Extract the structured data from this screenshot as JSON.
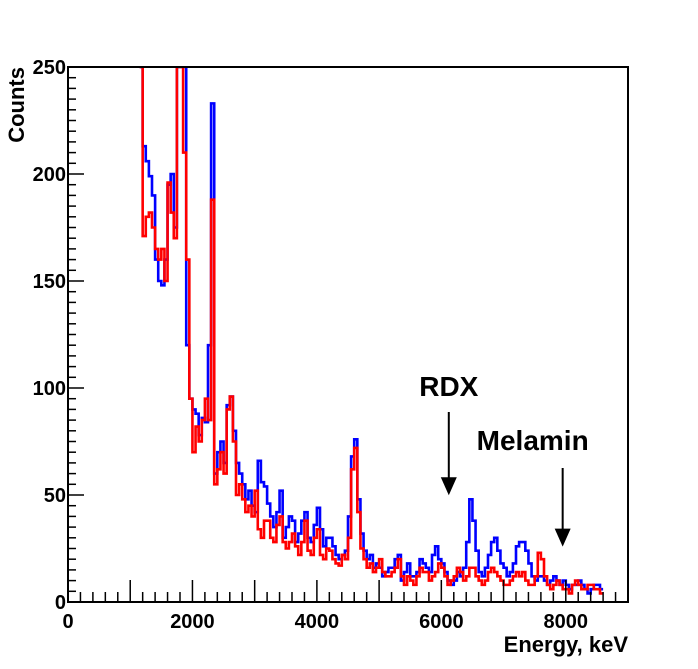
{
  "chart_data": {
    "type": "line",
    "title": "",
    "xlabel": "Energy, keV",
    "ylabel": "Counts",
    "xlim": [
      0,
      9000
    ],
    "ylim": [
      0,
      250
    ],
    "x_ticks": [
      0,
      2000,
      4000,
      6000,
      8000
    ],
    "y_ticks": [
      0,
      50,
      100,
      150,
      200,
      250
    ],
    "x_tick_labels": [
      "0",
      "2000",
      "4000",
      "6000",
      "8000"
    ],
    "y_tick_labels": [
      "0",
      "50",
      "100",
      "150",
      "200",
      "250"
    ],
    "grid": false,
    "histogram": true,
    "x_start": 1150,
    "bin_width": 50,
    "series": [
      {
        "color": "#0000ff",
        "values": [
          250,
          213,
          206,
          199,
          190,
          160,
          150,
          148,
          160,
          195,
          200,
          175,
          250,
          250,
          250,
          120,
          95,
          90,
          88,
          78,
          86,
          84,
          120,
          233,
          60,
          70,
          75,
          65,
          92,
          96,
          80,
          65,
          60,
          55,
          48,
          52,
          45,
          42,
          66,
          56,
          54,
          46,
          40,
          35,
          42,
          52,
          30,
          35,
          40,
          38,
          28,
          32,
          38,
          42,
          30,
          28,
          36,
          44,
          34,
          26,
          30,
          30,
          26,
          22,
          20,
          22,
          24,
          40,
          68,
          76,
          48,
          32,
          24,
          20,
          22,
          16,
          18,
          16,
          12,
          14,
          16,
          16,
          20,
          22,
          10,
          14,
          18,
          12,
          12,
          14,
          20,
          18,
          16,
          14,
          22,
          26,
          20,
          18,
          14,
          10,
          8,
          10,
          14,
          12,
          16,
          28,
          48,
          38,
          24,
          14,
          12,
          16,
          22,
          28,
          30,
          24,
          18,
          16,
          12,
          14,
          18,
          26,
          28,
          28,
          24,
          18,
          12,
          10,
          12,
          12,
          10,
          8,
          10,
          12,
          10,
          8,
          10,
          8,
          6,
          8,
          8,
          10,
          8,
          6,
          4,
          6,
          8,
          8,
          6
        ]
      },
      {
        "color": "#ff0000",
        "values": [
          250,
          171,
          180,
          182,
          175,
          165,
          160,
          165,
          150,
          196,
          182,
          170,
          250,
          250,
          210,
          160,
          95,
          70,
          82,
          75,
          85,
          95,
          85,
          188,
          55,
          62,
          70,
          60,
          90,
          96,
          75,
          50,
          55,
          48,
          42,
          45,
          40,
          52,
          34,
          30,
          38,
          38,
          30,
          28,
          36,
          40,
          28,
          25,
          28,
          32,
          26,
          22,
          28,
          38,
          24,
          22,
          30,
          34,
          22,
          20,
          25,
          24,
          20,
          18,
          17,
          22,
          20,
          30,
          62,
          72,
          42,
          25,
          20,
          16,
          18,
          14,
          16,
          20,
          14,
          12,
          12,
          14,
          16,
          20,
          12,
          8,
          12,
          10,
          8,
          12,
          16,
          14,
          14,
          10,
          12,
          14,
          18,
          16,
          12,
          8,
          10,
          12,
          16,
          14,
          10,
          12,
          16,
          16,
          12,
          10,
          8,
          10,
          14,
          16,
          14,
          12,
          10,
          8,
          8,
          10,
          12,
          14,
          12,
          14,
          10,
          8,
          8,
          12,
          23,
          20,
          12,
          8,
          6,
          8,
          10,
          8,
          6,
          6,
          4,
          8,
          10,
          8,
          6,
          6,
          8,
          8,
          6,
          6,
          4
        ]
      }
    ],
    "annotations": [
      {
        "text": "RDX",
        "x": 6120,
        "y": 48
      },
      {
        "text": "Melamin",
        "x": 7950,
        "y": 24
      }
    ]
  }
}
